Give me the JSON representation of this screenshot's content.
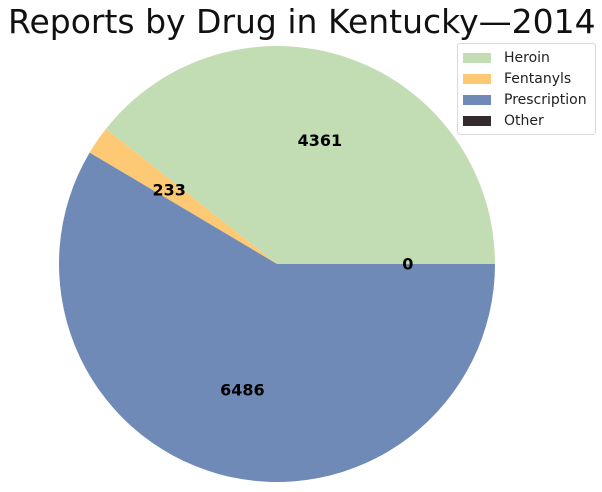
{
  "chart_data": {
    "type": "pie",
    "title": "Reports by Drug in Kentucky—2014",
    "slices": [
      {
        "name": "Heroin",
        "value": 4361,
        "label": "4361",
        "color": "#c2ddb3"
      },
      {
        "name": "Fentanyls",
        "value": 233,
        "label": "233",
        "color": "#fdc974"
      },
      {
        "name": "Prescription",
        "value": 6486,
        "label": "6486",
        "color": "#6f8ab6"
      },
      {
        "name": "Other",
        "value": 0,
        "label": "0",
        "color": "#332a2e"
      }
    ],
    "legend_position": "top-right"
  }
}
